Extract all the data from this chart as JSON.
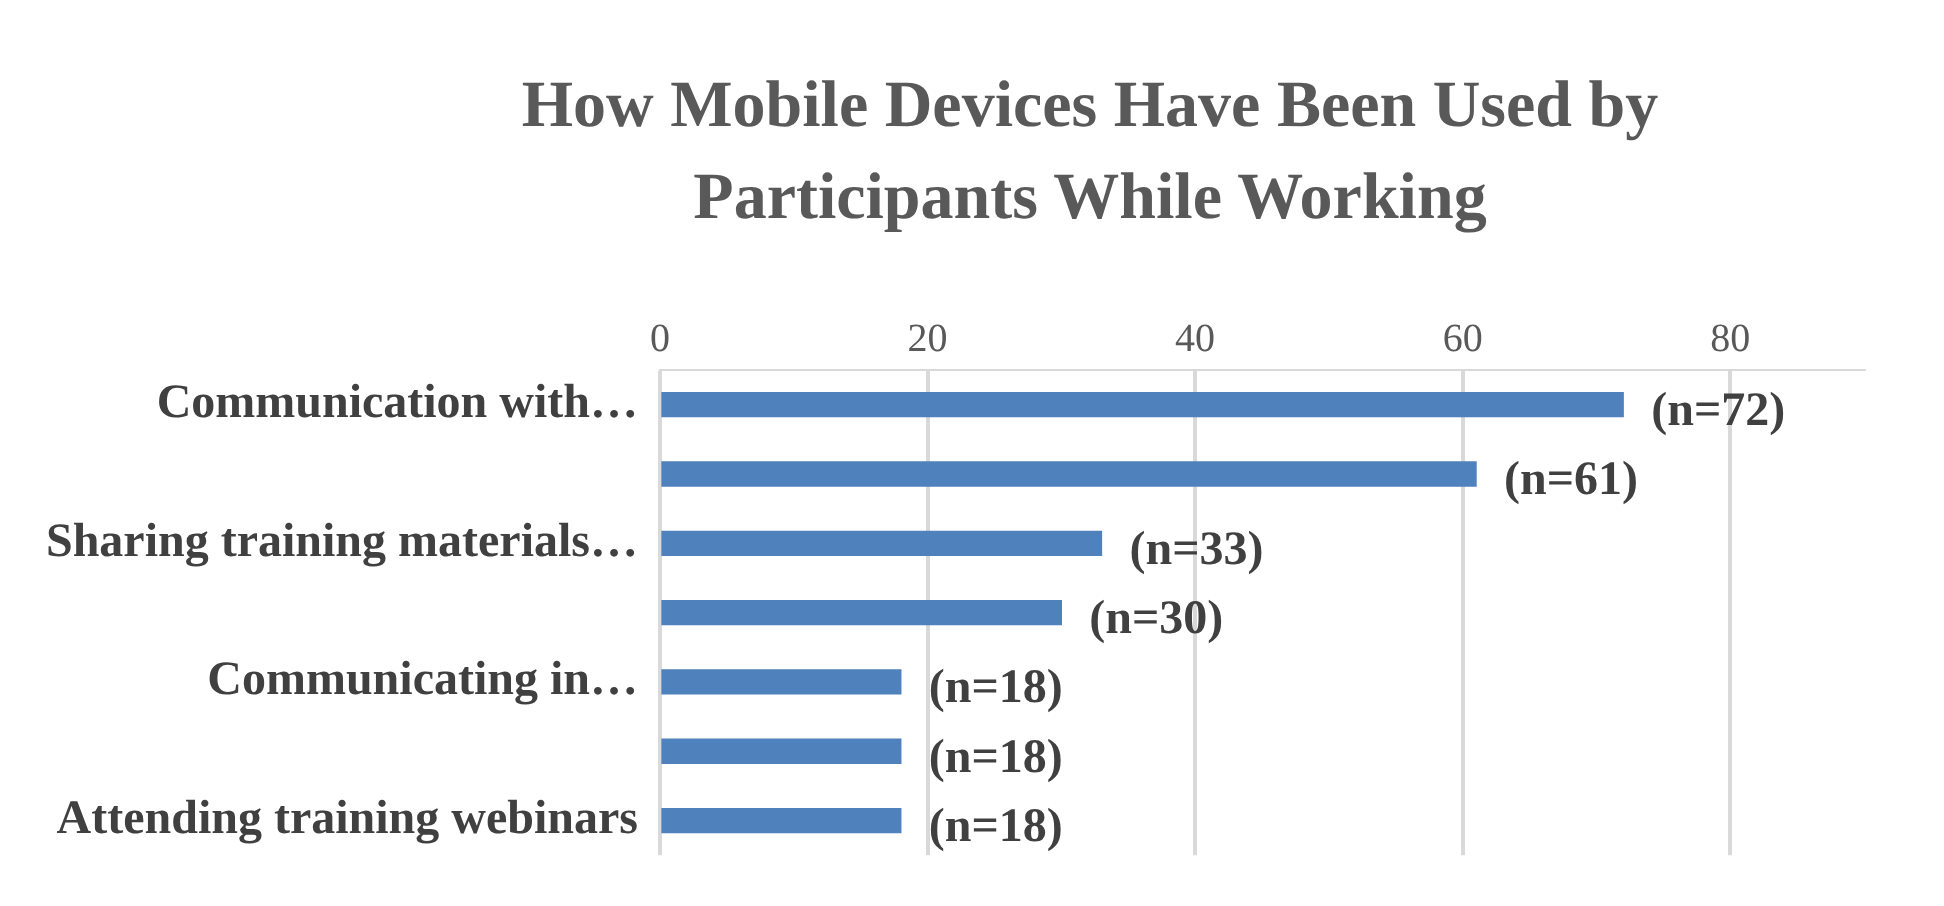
{
  "chart_data": {
    "type": "bar",
    "orientation": "horizontal",
    "title": "How Mobile Devices Have Been Used by Participants While Working",
    "categories": [
      "Communication with…",
      null,
      "Sharing training materials…",
      null,
      "Communicating in…",
      null,
      "Attending training webinars"
    ],
    "values": [
      72,
      61,
      33,
      30,
      18,
      18,
      18
    ],
    "value_labels": [
      "(n=72)",
      "(n=61)",
      "(n=33)",
      "(n=30)",
      "(n=18)",
      "(n=18)",
      "(n=18)"
    ],
    "color": "#4f81bd",
    "xlim": [
      0,
      90
    ],
    "xticks": [
      0,
      20,
      40,
      60,
      80
    ],
    "grid": "x",
    "legend": false
  }
}
